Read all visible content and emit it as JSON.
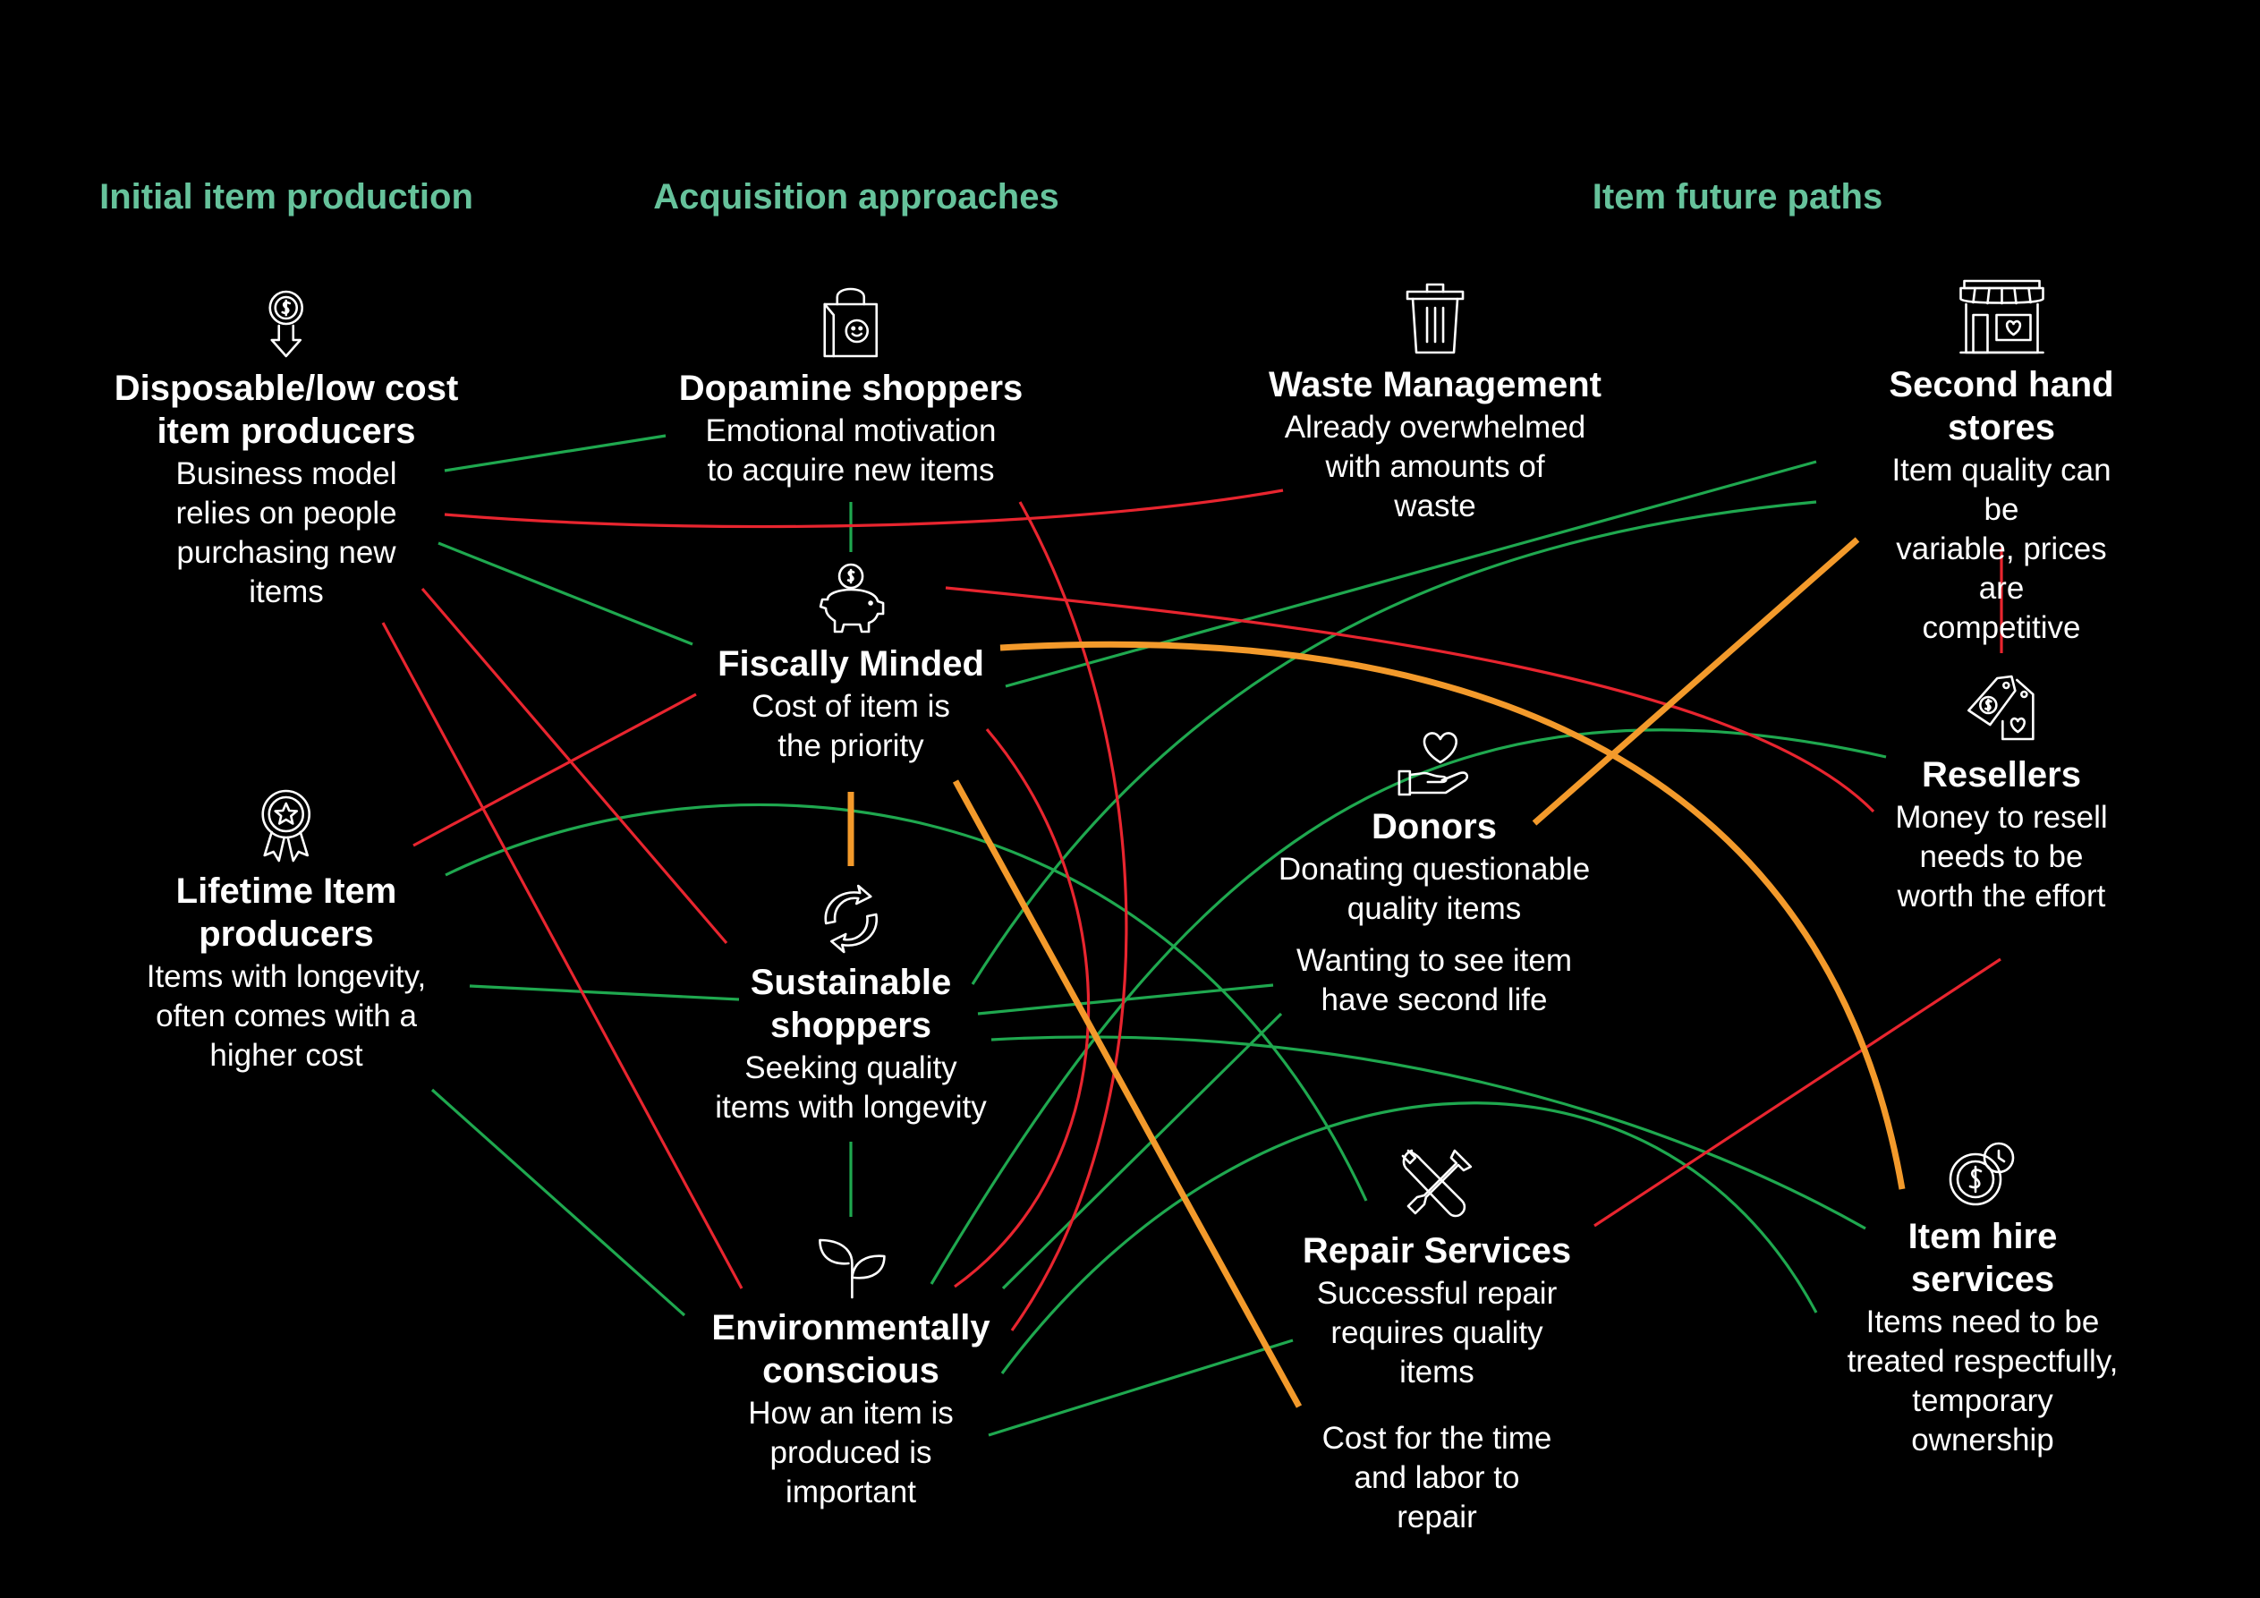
{
  "headers": {
    "initial": "Initial item production",
    "acquisition": "Acquisition approaches",
    "future": "Item future paths"
  },
  "nodes": {
    "disposable": {
      "title": "Disposable/low cost\nitem producers",
      "desc": "Business model\nrelies on people\npurchasing new\nitems",
      "icon": "coin-arrow-down-icon"
    },
    "lifetime": {
      "title": "Lifetime Item\nproducers",
      "desc": "Items with longevity,\noften comes with a\nhigher cost",
      "icon": "award-ribbon-icon"
    },
    "dopamine": {
      "title": "Dopamine shoppers",
      "desc": "Emotional motivation\nto acquire new items",
      "icon": "shopping-bag-icon"
    },
    "fiscal": {
      "title": "Fiscally Minded",
      "desc": "Cost of item is\nthe priority",
      "icon": "piggy-bank-icon"
    },
    "sustainable": {
      "title": "Sustainable\nshoppers",
      "desc": "Seeking quality\nitems with longevity",
      "icon": "recycle-icon"
    },
    "environmental": {
      "title": "Environmentally\nconscious",
      "desc": "How an item is\nproduced is\nimportant",
      "icon": "sprout-icon"
    },
    "waste": {
      "title": "Waste Management",
      "desc": "Already overwhelmed\nwith amounts of\nwaste",
      "icon": "trash-bin-icon"
    },
    "donors": {
      "title": "Donors",
      "desc": "Donating questionable\nquality items",
      "icon": "heart-hand-icon"
    },
    "repair": {
      "title": "Repair Services",
      "desc": "Successful repair\nrequires quality\nitems",
      "icon": "tools-icon"
    },
    "secondhand": {
      "title": "Second hand stores",
      "desc": "Item quality can be\nvariable, prices are\ncompetitive",
      "icon": "storefront-icon"
    },
    "resellers": {
      "title": "Resellers",
      "desc": "Money to resell\nneeds to be\nworth the effort",
      "icon": "price-tags-icon"
    },
    "hire": {
      "title": "Item hire\nservices",
      "desc": "Items need to be\ntreated respectfully,\ntemporary ownership",
      "icon": "coin-clock-icon"
    }
  },
  "notes": {
    "donors_extra": "Wanting to see item\nhave second life",
    "repair_extra": "Cost for the time\nand labor to\nrepair"
  },
  "colors": {
    "header": "#66c29b",
    "positive": "#1fa84f",
    "negative": "#e8252f",
    "strong": "#f39a2b",
    "background": "#000000",
    "text": "#ffffff"
  }
}
